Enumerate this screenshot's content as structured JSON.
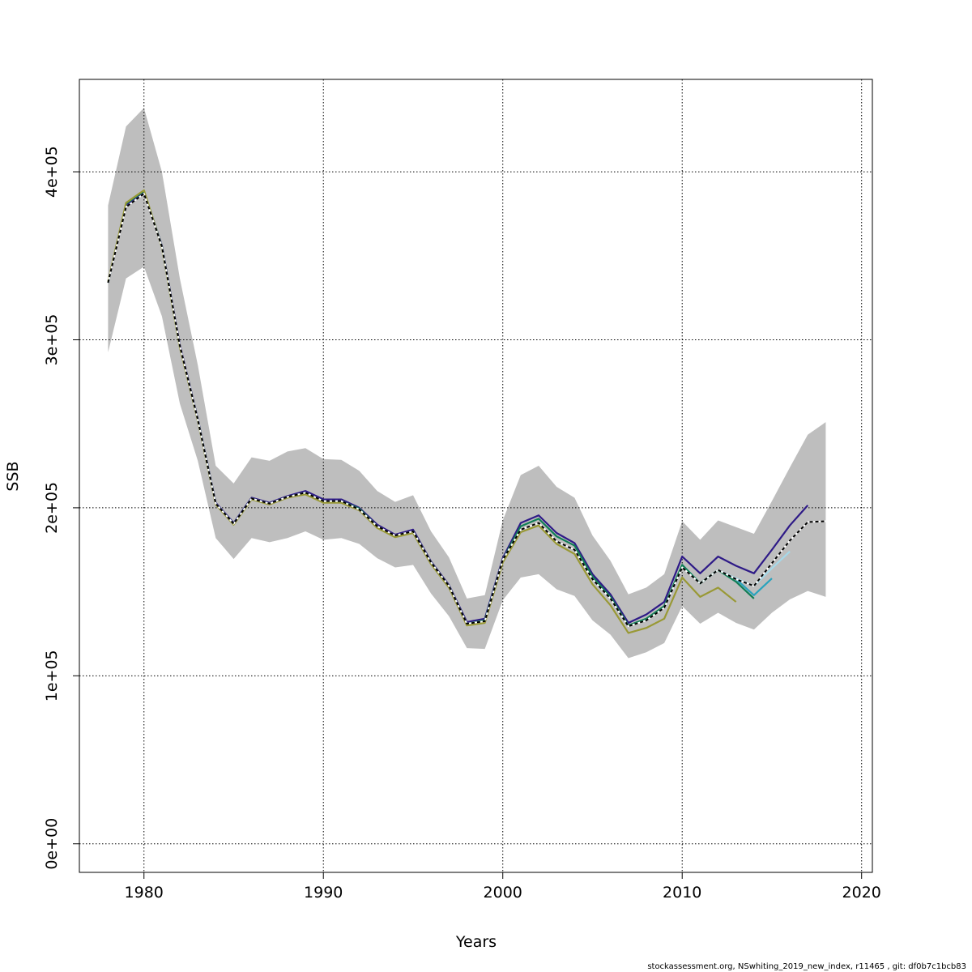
{
  "chart_data": {
    "type": "line",
    "title": "",
    "xlabel": "Years",
    "ylabel": "SSB",
    "xlim": [
      1976.4,
      1020.6
    ],
    "ylim": [
      -17000,
      455000
    ],
    "x_ticks": [
      1980,
      1990,
      2000,
      2010,
      2020
    ],
    "x_tick_labels": [
      "1980",
      "1990",
      "2000",
      "2010",
      "2020"
    ],
    "y_ticks": [
      0,
      100000,
      200000,
      300000,
      400000
    ],
    "y_tick_labels": [
      "0e+00",
      "1e+05",
      "2e+05",
      "3e+05",
      "4e+05"
    ],
    "grid": true,
    "legend": "none",
    "band": {
      "x": [
        1978,
        1979,
        1980,
        1981,
        1982,
        1983,
        1984,
        1985,
        1986,
        1987,
        1988,
        1989,
        1990,
        1991,
        1992,
        1993,
        1994,
        1995,
        1996,
        1997,
        1998,
        1999,
        2000,
        2001,
        2002,
        2003,
        2004,
        2005,
        2006,
        2007,
        2008,
        2009,
        2010,
        2011,
        2012,
        2013,
        2014,
        2015,
        2016,
        2017,
        2018
      ],
      "lower": [
        292500,
        336500,
        343500,
        314000,
        262000,
        228000,
        182000,
        169500,
        182000,
        179500,
        182000,
        186000,
        181000,
        182000,
        178500,
        170000,
        164500,
        166000,
        149000,
        135500,
        116500,
        116000,
        145000,
        158500,
        160500,
        151500,
        147500,
        133000,
        124500,
        110500,
        114000,
        119500,
        141500,
        131000,
        137500,
        131500,
        127500,
        137500,
        145500,
        150500,
        147000
      ],
      "upper": [
        380000,
        427000,
        438000,
        400000,
        336500,
        285000,
        225000,
        214500,
        230000,
        228000,
        233500,
        235500,
        229000,
        228500,
        222000,
        210000,
        203500,
        207500,
        186000,
        170500,
        146000,
        148000,
        192500,
        219500,
        225000,
        212500,
        206000,
        183500,
        168500,
        148500,
        152500,
        160500,
        192000,
        181000,
        192500,
        188500,
        184500,
        204000,
        224000,
        243500,
        251000
      ],
      "color": "#bebebe"
    },
    "series": [
      {
        "color": "#2e1a87",
        "x": [
          1978,
          1979,
          1980,
          1981,
          1982,
          1983,
          1984,
          1985,
          1986,
          1987,
          1988,
          1989,
          1990,
          1991,
          1992,
          1993,
          1994,
          1995,
          1996,
          1997,
          1998,
          1999,
          2000,
          2001,
          2002,
          2003,
          2004,
          2005,
          2006,
          2007,
          2008,
          2009,
          2010,
          2011,
          2012,
          2013,
          2014,
          2015,
          2016,
          2017
        ],
        "values": [
          334000,
          380000,
          388000,
          356000,
          297000,
          253000,
          203000,
          191000,
          206000,
          203000,
          207000,
          210000,
          205000,
          205000,
          200000,
          190000,
          184000,
          187000,
          168000,
          154000,
          132000,
          134000,
          170000,
          191000,
          195500,
          185000,
          179000,
          160500,
          148500,
          131500,
          136500,
          144000,
          171000,
          161000,
          171000,
          165500,
          161000,
          175000,
          189500,
          201500
        ]
      },
      {
        "color": "#2aa3bd",
        "x": [
          2010,
          2011,
          2012,
          2013,
          2014,
          2015
        ],
        "values": [
          166000,
          155000,
          163000,
          157500,
          148000,
          158000
        ]
      },
      {
        "color": "#a6d8e8",
        "x": [
          2012,
          2013,
          2014,
          2015,
          2016
        ],
        "values": [
          163000,
          158000,
          153500,
          164000,
          174000
        ]
      },
      {
        "color": "#107e56",
        "x": [
          1978,
          1979,
          1980,
          1981,
          1982,
          1983,
          1984,
          1985,
          1986,
          1987,
          1988,
          1989,
          1990,
          1991,
          1992,
          1993,
          1994,
          1995,
          1996,
          1997,
          1998,
          1999,
          2000,
          2001,
          2002,
          2003,
          2004,
          2005,
          2006,
          2007,
          2008,
          2009,
          2010,
          2011,
          2012,
          2013,
          2014
        ],
        "values": [
          334000,
          381000,
          388500,
          355500,
          296000,
          252500,
          202500,
          190500,
          205500,
          202500,
          206500,
          209000,
          204000,
          204000,
          199500,
          189000,
          183000,
          186000,
          167500,
          153500,
          131000,
          133000,
          169000,
          189000,
          193500,
          183000,
          177500,
          159000,
          147000,
          130000,
          134000,
          141500,
          166000,
          155000,
          163000,
          156000,
          146000
        ]
      },
      {
        "color": "#999935",
        "x": [
          1978,
          1979,
          1980,
          1981,
          1982,
          1983,
          1984,
          1985,
          1986,
          1987,
          1988,
          1989,
          1990,
          1991,
          1992,
          1993,
          1994,
          1995,
          1996,
          1997,
          1998,
          1999,
          2000,
          2001,
          2002,
          2003,
          2004,
          2005,
          2006,
          2007,
          2008,
          2009,
          2010,
          2011,
          2012,
          2013
        ],
        "values": [
          334500,
          381500,
          389000,
          355000,
          295500,
          252000,
          202000,
          190000,
          205000,
          202000,
          206000,
          208000,
          203000,
          203000,
          198500,
          188000,
          182500,
          185000,
          166500,
          152500,
          130000,
          131500,
          167500,
          185500,
          189500,
          178500,
          172500,
          154500,
          142000,
          125500,
          128500,
          134000,
          158500,
          147000,
          152500,
          144000
        ]
      },
      {
        "color": "#000000",
        "dashed_overlay": true,
        "x": [
          1978,
          1979,
          1980,
          1981,
          1982,
          1983,
          1984,
          1985,
          1986,
          1987,
          1988,
          1989,
          1990,
          1991,
          1992,
          1993,
          1994,
          1995,
          1996,
          1997,
          1998,
          1999,
          2000,
          2001,
          2002,
          2003,
          2004,
          2005,
          2006,
          2007,
          2008,
          2009,
          2010,
          2011,
          2012,
          2013,
          2014,
          2015,
          2016,
          2017,
          2018
        ],
        "values": [
          334000,
          379000,
          387000,
          355500,
          296500,
          252500,
          202500,
          190500,
          205500,
          202500,
          206500,
          209000,
          204000,
          204000,
          199000,
          189000,
          183500,
          186000,
          167500,
          153500,
          131000,
          132500,
          169000,
          187000,
          191000,
          180000,
          175000,
          157500,
          146000,
          129500,
          133000,
          140500,
          164500,
          155000,
          163000,
          157500,
          153500,
          167000,
          180500,
          191500,
          192000
        ]
      }
    ]
  },
  "footer_text": "stockassessment.org, NSwhiting_2019_new_index, r11465 , git: df0b7c1bcb83"
}
